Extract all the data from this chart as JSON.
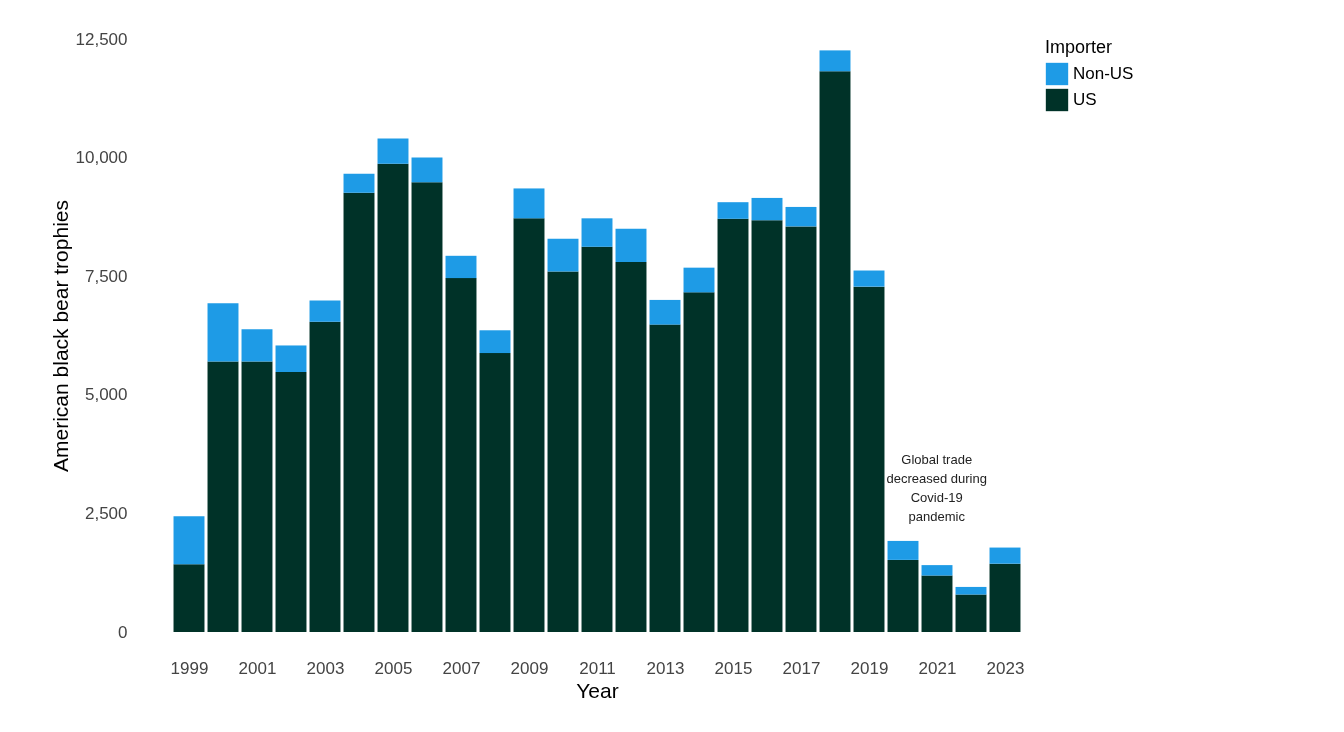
{
  "chart_data": {
    "type": "bar",
    "stacked": true,
    "xlabel": "Year",
    "ylabel": "American black bear trophies",
    "legend_title": "Importer",
    "x": [
      1999,
      2000,
      2001,
      2002,
      2003,
      2004,
      2005,
      2006,
      2007,
      2008,
      2009,
      2010,
      2011,
      2012,
      2013,
      2014,
      2015,
      2016,
      2017,
      2018,
      2019,
      2020,
      2021,
      2022,
      2023
    ],
    "xlim": [
      1998.5,
      2023.5
    ],
    "xticks": [
      1999,
      2001,
      2003,
      2005,
      2007,
      2009,
      2011,
      2013,
      2015,
      2017,
      2019,
      2021,
      2023
    ],
    "ylim": [
      0,
      12500
    ],
    "yticks": [
      0,
      {
        "value": 2500,
        "label": "2,500"
      },
      {
        "value": 5000,
        "label": "5,000"
      },
      {
        "value": 7500,
        "label": "7,500"
      },
      {
        "value": 10000,
        "label": "10,000"
      },
      {
        "value": 12500,
        "label": "12,500"
      }
    ],
    "series": [
      {
        "name": "US",
        "color": "#003228",
        "values": [
          1430,
          5700,
          5700,
          5480,
          6540,
          9260,
          9870,
          9480,
          7460,
          5880,
          8720,
          7600,
          8120,
          7800,
          6480,
          7160,
          8710,
          8680,
          8550,
          11820,
          7280,
          1520,
          1190,
          790,
          1440
        ]
      },
      {
        "name": "Non-US",
        "color": "#1e9be6",
        "values": [
          1010,
          1230,
          680,
          560,
          450,
          400,
          530,
          520,
          470,
          480,
          630,
          690,
          600,
          700,
          520,
          520,
          350,
          470,
          410,
          440,
          340,
          400,
          220,
          160,
          340
        ]
      }
    ],
    "annotations": [
      "Global trade decreased during Covid-19 pandemic"
    ],
    "legend": "right",
    "grid": false
  }
}
